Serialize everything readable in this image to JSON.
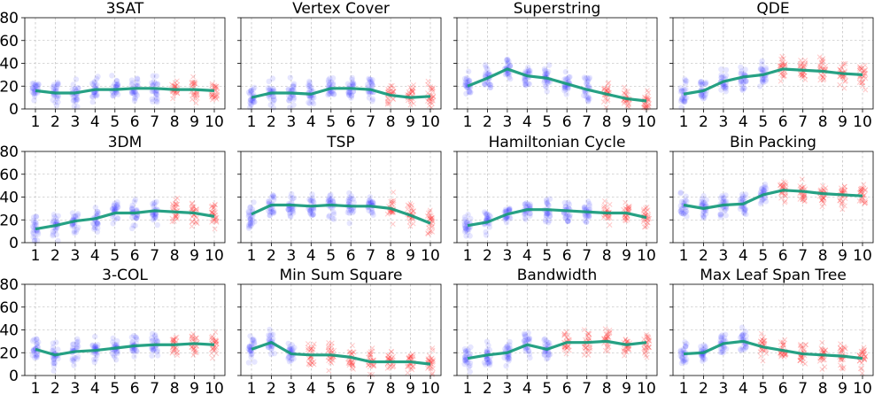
{
  "figure": {
    "colors": {
      "line": "#14997a",
      "low_marker": "#3b3bff",
      "high_marker": "#ff3b3b"
    }
  },
  "chart_data": [
    {
      "type": "line",
      "title": "3SAT",
      "x": [
        1,
        2,
        3,
        4,
        5,
        6,
        7,
        8,
        9,
        10
      ],
      "y": [
        16,
        14,
        14,
        17,
        17,
        18,
        18,
        17,
        17,
        16
      ],
      "xticks": [
        "1",
        "2",
        "3",
        "4",
        "5",
        "6",
        "7",
        "8",
        "9",
        "10"
      ],
      "yticks": [
        "0",
        "20",
        "40",
        "60",
        "80"
      ],
      "ylim": [
        0,
        80
      ],
      "marker_switch_x": 8
    },
    {
      "type": "line",
      "title": "Vertex Cover",
      "x": [
        1,
        2,
        3,
        4,
        5,
        6,
        7,
        8,
        9,
        10
      ],
      "y": [
        10,
        14,
        14,
        13,
        18,
        18,
        17,
        12,
        10,
        11
      ],
      "xticks": [
        "1",
        "2",
        "3",
        "4",
        "5",
        "6",
        "7",
        "8",
        "9",
        "10"
      ],
      "yticks": [
        "0",
        "20",
        "40",
        "60",
        "80"
      ],
      "ylim": [
        0,
        80
      ],
      "marker_switch_x": 8
    },
    {
      "type": "line",
      "title": "Superstring",
      "x": [
        1,
        2,
        3,
        4,
        5,
        6,
        7,
        8,
        9,
        10
      ],
      "y": [
        20,
        27,
        35,
        29,
        27,
        22,
        17,
        13,
        9,
        7
      ],
      "xticks": [
        "1",
        "2",
        "3",
        "4",
        "5",
        "6",
        "7",
        "8",
        "9",
        "10"
      ],
      "yticks": [
        "0",
        "20",
        "40",
        "60",
        "80"
      ],
      "ylim": [
        0,
        80
      ],
      "marker_switch_x": 8
    },
    {
      "type": "line",
      "title": "QDE",
      "x": [
        1,
        2,
        3,
        4,
        5,
        6,
        7,
        8,
        9,
        10
      ],
      "y": [
        13,
        16,
        24,
        28,
        30,
        35,
        34,
        33,
        31,
        30
      ],
      "xticks": [
        "1",
        "2",
        "3",
        "4",
        "5",
        "6",
        "7",
        "8",
        "9",
        "10"
      ],
      "yticks": [
        "0",
        "20",
        "40",
        "60",
        "80"
      ],
      "ylim": [
        0,
        80
      ],
      "marker_switch_x": 6
    },
    {
      "type": "line",
      "title": "3DM",
      "x": [
        1,
        2,
        3,
        4,
        5,
        6,
        7,
        8,
        9,
        10
      ],
      "y": [
        12,
        15,
        19,
        21,
        26,
        26,
        28,
        27,
        26,
        23
      ],
      "xticks": [
        "1",
        "2",
        "3",
        "4",
        "5",
        "6",
        "7",
        "8",
        "9",
        "10"
      ],
      "yticks": [
        "0",
        "20",
        "40",
        "60",
        "80"
      ],
      "ylim": [
        0,
        80
      ],
      "marker_switch_x": 8
    },
    {
      "type": "line",
      "title": "TSP",
      "x": [
        1,
        2,
        3,
        4,
        5,
        6,
        7,
        8,
        9,
        10
      ],
      "y": [
        25,
        33,
        33,
        32,
        33,
        32,
        32,
        30,
        24,
        17
      ],
      "xticks": [
        "1",
        "2",
        "3",
        "4",
        "5",
        "6",
        "7",
        "8",
        "9",
        "10"
      ],
      "yticks": [
        "0",
        "20",
        "40",
        "60",
        "80"
      ],
      "ylim": [
        0,
        80
      ],
      "marker_switch_x": 8
    },
    {
      "type": "line",
      "title": "Hamiltonian Cycle",
      "x": [
        1,
        2,
        3,
        4,
        5,
        6,
        7,
        8,
        9,
        10
      ],
      "y": [
        15,
        18,
        25,
        29,
        29,
        28,
        27,
        26,
        26,
        22
      ],
      "xticks": [
        "1",
        "2",
        "3",
        "4",
        "5",
        "6",
        "7",
        "8",
        "9",
        "10"
      ],
      "yticks": [
        "0",
        "20",
        "40",
        "60",
        "80"
      ],
      "ylim": [
        0,
        80
      ],
      "marker_switch_x": 8
    },
    {
      "type": "line",
      "title": "Bin Packing",
      "x": [
        1,
        2,
        3,
        4,
        5,
        6,
        7,
        8,
        9,
        10
      ],
      "y": [
        33,
        30,
        33,
        34,
        42,
        46,
        45,
        43,
        42,
        41
      ],
      "xticks": [
        "1",
        "2",
        "3",
        "4",
        "5",
        "6",
        "7",
        "8",
        "9",
        "10"
      ],
      "yticks": [
        "0",
        "20",
        "40",
        "60",
        "80"
      ],
      "ylim": [
        0,
        80
      ],
      "marker_switch_x": 6
    },
    {
      "type": "line",
      "title": "3-COL",
      "x": [
        1,
        2,
        3,
        4,
        5,
        6,
        7,
        8,
        9,
        10
      ],
      "y": [
        23,
        18,
        21,
        22,
        24,
        26,
        27,
        27,
        28,
        27
      ],
      "xticks": [
        "1",
        "2",
        "3",
        "4",
        "5",
        "6",
        "7",
        "8",
        "9",
        "10"
      ],
      "yticks": [
        "0",
        "20",
        "40",
        "60",
        "80"
      ],
      "ylim": [
        0,
        80
      ],
      "marker_switch_x": 8
    },
    {
      "type": "line",
      "title": "Min Sum Square",
      "x": [
        1,
        2,
        3,
        4,
        5,
        6,
        7,
        8,
        9,
        10
      ],
      "y": [
        23,
        29,
        19,
        18,
        18,
        16,
        12,
        12,
        12,
        10
      ],
      "xticks": [
        "1",
        "2",
        "3",
        "4",
        "5",
        "6",
        "7",
        "8",
        "9",
        "10"
      ],
      "yticks": [
        "0",
        "20",
        "40",
        "60",
        "80"
      ],
      "ylim": [
        0,
        80
      ],
      "marker_switch_x": 4
    },
    {
      "type": "line",
      "title": "Bandwidth",
      "x": [
        1,
        2,
        3,
        4,
        5,
        6,
        7,
        8,
        9,
        10
      ],
      "y": [
        15,
        18,
        20,
        27,
        23,
        29,
        29,
        30,
        27,
        29
      ],
      "xticks": [
        "1",
        "2",
        "3",
        "4",
        "5",
        "6",
        "7",
        "8",
        "9",
        "10"
      ],
      "yticks": [
        "0",
        "20",
        "40",
        "60",
        "80"
      ],
      "ylim": [
        0,
        80
      ],
      "marker_switch_x": 6
    },
    {
      "type": "line",
      "title": "Max Leaf Span Tree",
      "x": [
        1,
        2,
        3,
        4,
        5,
        6,
        7,
        8,
        9,
        10
      ],
      "y": [
        19,
        20,
        28,
        30,
        25,
        22,
        19,
        18,
        17,
        15
      ],
      "xticks": [
        "1",
        "2",
        "3",
        "4",
        "5",
        "6",
        "7",
        "8",
        "9",
        "10"
      ],
      "yticks": [
        "0",
        "20",
        "40",
        "60",
        "80"
      ],
      "ylim": [
        0,
        80
      ],
      "marker_switch_x": 5
    }
  ]
}
